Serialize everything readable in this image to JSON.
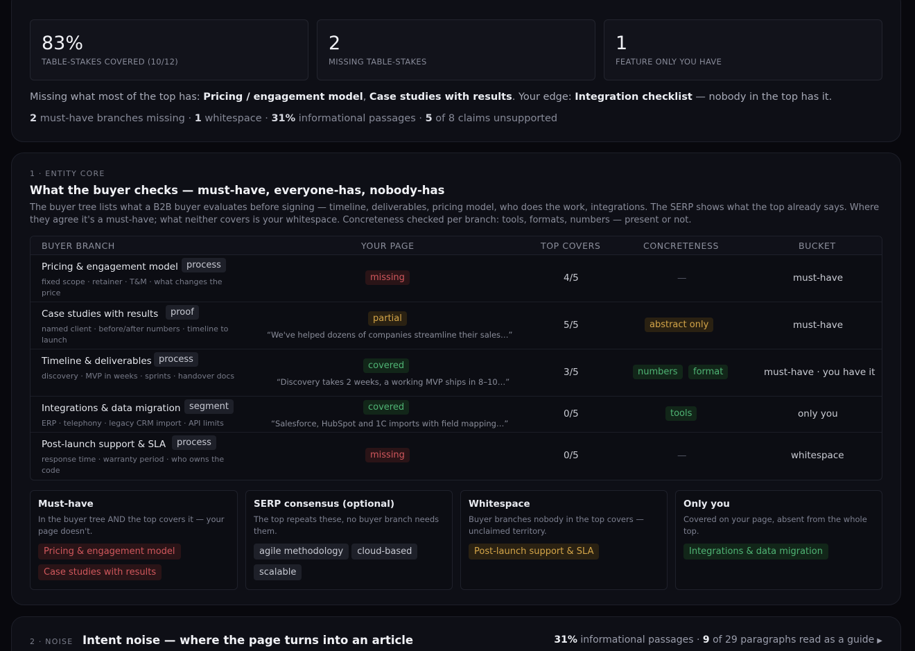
{
  "summary": {
    "stats": [
      {
        "value": "83%",
        "label": "TABLE-STAKES COVERED (10/12)"
      },
      {
        "value": "2",
        "label": "MISSING TABLE-STAKES"
      },
      {
        "value": "1",
        "label": "FEATURE ONLY YOU HAVE"
      }
    ],
    "line1": {
      "prefix": "Missing what most of the top has: ",
      "missing_1": "Pricing / engagement model",
      "sep": ", ",
      "missing_2": "Case studies with results",
      "mid": ". Your edge: ",
      "edge": "Integration checklist",
      "suffix": " — nobody in the top has it."
    },
    "line2": {
      "n1": "2",
      "t1": " must-have branches missing · ",
      "n2": "1",
      "t2": " whitespace · ",
      "n3": "31%",
      "t3": " informational passages · ",
      "n4": "5",
      "t4": " of 8 claims unsupported"
    }
  },
  "entity": {
    "eyebrow": "1 · ENTITY CORE",
    "title": "What the buyer checks — must-have, everyone-has, nobody-has",
    "description": "The buyer tree lists what a B2B buyer evaluates before signing — timeline, deliverables, pricing model, who does the work, integrations. The SERP shows what the top already says. Where they agree it's a must-have; what neither covers is your whitespace. Concreteness checked per branch: tools, formats, numbers — present or not.",
    "columns": [
      "BUYER BRANCH",
      "YOUR PAGE",
      "TOP COVERS",
      "CONCRETENESS",
      "BUCKET"
    ],
    "rows": [
      {
        "name": "Pricing & engagement model",
        "tag": "process",
        "sub": "fixed scope · retainer · T&M · what changes the price",
        "status": "missing",
        "quote": "",
        "top": "4/5",
        "conc": [],
        "conc_empty": "—",
        "bucket": "must-have"
      },
      {
        "name": "Case studies with results",
        "tag": "proof",
        "sub": "named client · before/after numbers · timeline to launch",
        "status": "partial",
        "quote": "“We've helped dozens of companies streamline their sales…”",
        "top": "5/5",
        "conc": [
          "abstract only"
        ],
        "conc_empty": "",
        "bucket": "must-have"
      },
      {
        "name": "Timeline & deliverables",
        "tag": "process",
        "sub": "discovery · MVP in weeks · sprints · handover docs",
        "status": "covered",
        "quote": "“Discovery takes 2 weeks, a working MVP ships in 8–10…”",
        "top": "3/5",
        "conc": [
          "numbers",
          "format"
        ],
        "conc_empty": "",
        "bucket": "must-have · you have it"
      },
      {
        "name": "Integrations & data migration",
        "tag": "segment",
        "sub": "ERP · telephony · legacy CRM import · API limits",
        "status": "covered",
        "quote": "“Salesforce, HubSpot and 1C imports with field mapping…”",
        "top": "0/5",
        "conc": [
          "tools"
        ],
        "conc_empty": "",
        "bucket": "only you"
      },
      {
        "name": "Post-launch support & SLA",
        "tag": "process",
        "sub": "response time · warranty period · who owns the code",
        "status": "missing",
        "quote": "",
        "top": "0/5",
        "conc": [],
        "conc_empty": "—",
        "bucket": "whitespace"
      }
    ],
    "buckets": [
      {
        "title": "Must-have",
        "desc": "In the buyer tree AND the top covers it — your page doesn't.",
        "chips": [
          "Pricing & engagement model",
          "Case studies with results"
        ],
        "color": "#d0575c"
      },
      {
        "title": "SERP consensus (optional)",
        "desc": "The top repeats these, no buyer branch needs them.",
        "chips": [
          "agile methodology",
          "cloud-based",
          "scalable"
        ],
        "color": "#c7c9d2"
      },
      {
        "title": "Whitespace",
        "desc": "Buyer branches nobody in the top covers — unclaimed territory.",
        "chips": [
          "Post-launch support & SLA"
        ],
        "color": "#d4a548"
      },
      {
        "title": "Only you",
        "desc": "Covered on your page, absent from the whole top.",
        "chips": [
          "Integrations & data migration"
        ],
        "color": "#4fb474"
      }
    ]
  },
  "noise": {
    "eyebrow": "2 · NOISE",
    "title": "Intent noise — where the page turns into an article",
    "stat_pct": "31%",
    "stat_text1": " informational passages · ",
    "stat_n": "9",
    "stat_text2": " of 29 paragraphs read as a guide",
    "caret_icon": "caret-right-icon"
  }
}
